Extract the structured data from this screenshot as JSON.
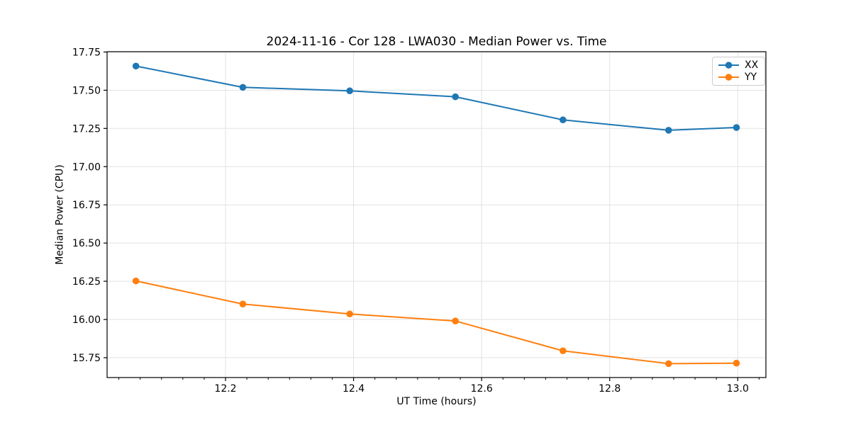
{
  "chart_data": {
    "type": "line",
    "title": "2024-11-16 - Cor 128 - LWA030 - Median Power vs. Time",
    "xlabel": "UT Time (hours)",
    "ylabel": "Median Power (CPU)",
    "xlim": [
      12.015,
      13.044
    ],
    "ylim": [
      15.62,
      17.752
    ],
    "x_ticks": [
      12.2,
      12.4,
      12.6,
      12.8,
      13.0
    ],
    "x_tick_labels": [
      "12.2",
      "12.4",
      "12.6",
      "12.8",
      "13.0"
    ],
    "x_minor_tick_step": 0.033333,
    "y_ticks": [
      15.75,
      16.0,
      16.25,
      16.5,
      16.75,
      17.0,
      17.25,
      17.5,
      17.75
    ],
    "y_tick_labels": [
      "15.75",
      "16.00",
      "16.25",
      "16.50",
      "16.75",
      "17.00",
      "17.25",
      "17.50",
      "17.75"
    ],
    "grid": true,
    "legend": {
      "position": "upper right"
    },
    "x": [
      12.06,
      12.227,
      12.394,
      12.559,
      12.727,
      12.892,
      12.998
    ],
    "series": [
      {
        "name": "XX",
        "color": "#1f77b4",
        "values": [
          17.658,
          17.519,
          17.496,
          17.457,
          17.306,
          17.238,
          17.256
        ]
      },
      {
        "name": "YY",
        "color": "#ff7f0e",
        "values": [
          16.252,
          16.101,
          16.036,
          15.99,
          15.795,
          15.711,
          15.714
        ]
      }
    ]
  },
  "colors": {
    "background": "#ffffff",
    "grid": "#e2e2e2",
    "spine": "#000000",
    "tick": "#000000",
    "text": "#000000",
    "legend_border": "#cccccc"
  }
}
